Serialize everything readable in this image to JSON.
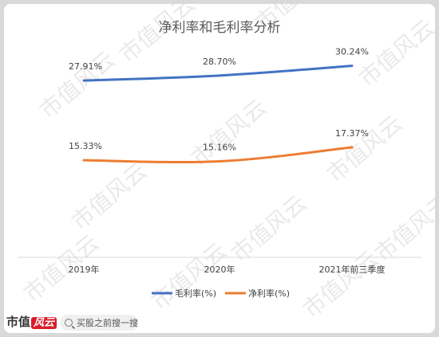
{
  "chart_data": {
    "type": "line",
    "title": "净利率和毛利率分析",
    "categories": [
      "2019年",
      "2020年",
      "2021年前三季度"
    ],
    "series": [
      {
        "name": "毛利率(%)",
        "color": "#4472c4",
        "values": [
          27.91,
          28.7,
          30.24
        ],
        "labels": [
          "27.91%",
          "28.70%",
          "30.24%"
        ]
      },
      {
        "name": "净利率(%)",
        "color": "#ed7d31",
        "values": [
          15.33,
          15.16,
          17.37
        ],
        "labels": [
          "15.33%",
          "15.16%",
          "17.37%"
        ]
      }
    ],
    "ylim": [
      0,
      40
    ],
    "grid": false,
    "legend_position": "bottom"
  },
  "watermark": "市值风云",
  "footer": {
    "logo_text": "市值",
    "logo_accent": "风云",
    "search_text": "买股之前搜一搜"
  }
}
